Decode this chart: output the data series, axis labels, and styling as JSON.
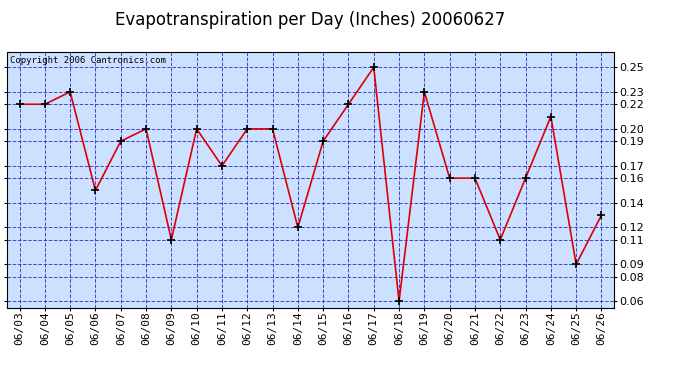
{
  "title": "Evapotranspiration per Day (Inches) 20060627",
  "copyright": "Copyright 2006 Cantronics.com",
  "dates": [
    "06/03",
    "06/04",
    "06/05",
    "06/06",
    "06/07",
    "06/08",
    "06/09",
    "06/10",
    "06/11",
    "06/12",
    "06/13",
    "06/14",
    "06/15",
    "06/16",
    "06/17",
    "06/18",
    "06/19",
    "06/20",
    "06/21",
    "06/22",
    "06/23",
    "06/24",
    "06/25",
    "06/26"
  ],
  "values": [
    0.22,
    0.22,
    0.23,
    0.15,
    0.19,
    0.2,
    0.11,
    0.2,
    0.17,
    0.2,
    0.2,
    0.12,
    0.19,
    0.22,
    0.25,
    0.06,
    0.23,
    0.16,
    0.16,
    0.11,
    0.16,
    0.21,
    0.09,
    0.13
  ],
  "ylim": [
    0.055,
    0.262
  ],
  "yticks": [
    0.06,
    0.08,
    0.09,
    0.11,
    0.12,
    0.14,
    0.16,
    0.17,
    0.19,
    0.2,
    0.22,
    0.23,
    0.25
  ],
  "line_color": "#dd0000",
  "marker_color": "#000000",
  "bg_color": "#cce0ff",
  "grid_color": "#3333cc",
  "border_color": "#000000",
  "title_fontsize": 12,
  "tick_fontsize": 8,
  "copyright_fontsize": 6.5
}
